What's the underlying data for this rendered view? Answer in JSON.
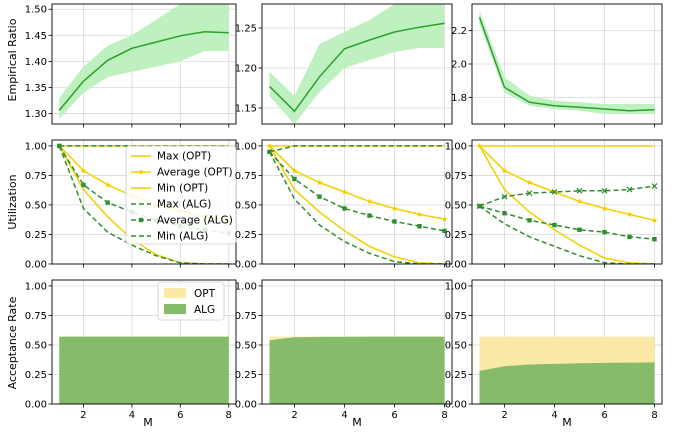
{
  "figure": {
    "xlabel": "M",
    "row_labels": [
      "Empirical Ratio",
      "Utilization",
      "Acceptance Rate"
    ],
    "colors": {
      "ratio_line": "#2ca02c",
      "ratio_band": "#bff0bf",
      "opt": "#f2d000",
      "alg": "#2f8f2f",
      "opt_area": "#fbe9a6",
      "alg_area": "#86bb6a",
      "grid": "#d8d8d8"
    }
  },
  "chart_data": [
    {
      "id": "ratio-1",
      "type": "line",
      "ylabel": "Empirical Ratio",
      "x": [
        1,
        2,
        3,
        4,
        5,
        6,
        7,
        8
      ],
      "series": [
        {
          "values": [
            1.306,
            1.362,
            1.402,
            1.425,
            1.437,
            1.449,
            1.457,
            1.455
          ],
          "lower": [
            1.29,
            1.34,
            1.37,
            1.38,
            1.39,
            1.4,
            1.42,
            1.42
          ],
          "upper": [
            1.33,
            1.39,
            1.43,
            1.45,
            1.48,
            1.51,
            1.51,
            1.51
          ]
        }
      ],
      "xlim": [
        0.7,
        8.3
      ],
      "ylim": [
        1.28,
        1.51
      ],
      "xticks": [
        2,
        4,
        6,
        8
      ],
      "yticks": [
        1.3,
        1.35,
        1.4,
        1.45,
        1.5
      ],
      "yfmt": 2,
      "grid": true
    },
    {
      "id": "ratio-2",
      "type": "line",
      "x": [
        1,
        2,
        3,
        4,
        5,
        6,
        7,
        8
      ],
      "series": [
        {
          "values": [
            1.177,
            1.146,
            1.189,
            1.224,
            1.235,
            1.245,
            1.251,
            1.256
          ],
          "lower": [
            1.165,
            1.13,
            1.17,
            1.2,
            1.21,
            1.22,
            1.225,
            1.225
          ],
          "upper": [
            1.195,
            1.165,
            1.23,
            1.245,
            1.26,
            1.28,
            1.28,
            1.28
          ]
        }
      ],
      "xlim": [
        0.7,
        8.3
      ],
      "ylim": [
        1.13,
        1.28
      ],
      "xticks": [
        2,
        4,
        6,
        8
      ],
      "yticks": [
        1.15,
        1.2,
        1.25
      ],
      "yfmt": 2,
      "grid": true
    },
    {
      "id": "ratio-3",
      "type": "line",
      "x": [
        1,
        2,
        3,
        4,
        5,
        6,
        7,
        8
      ],
      "series": [
        {
          "values": [
            2.28,
            1.86,
            1.77,
            1.75,
            1.74,
            1.73,
            1.72,
            1.725
          ],
          "lower": [
            2.24,
            1.83,
            1.75,
            1.73,
            1.72,
            1.7,
            1.7,
            1.7
          ],
          "upper": [
            2.32,
            1.92,
            1.81,
            1.78,
            1.77,
            1.76,
            1.76,
            1.76
          ]
        }
      ],
      "xlim": [
        0.7,
        8.3
      ],
      "ylim": [
        1.64,
        2.36
      ],
      "xticks": [
        2,
        4,
        6,
        8
      ],
      "yticks": [
        1.8,
        2.0,
        2.2
      ],
      "yfmt": 1,
      "grid": true
    },
    {
      "id": "util-1",
      "type": "line",
      "ylabel": "Utilization",
      "x": [
        1,
        2,
        3,
        4,
        5,
        6,
        7,
        8
      ],
      "series": [
        {
          "name": "Max (OPT)",
          "group": "opt",
          "style": "solid",
          "marker": "none",
          "values": [
            1,
            1,
            1,
            1,
            1,
            1,
            1,
            1
          ]
        },
        {
          "name": "Average (OPT)",
          "group": "opt",
          "style": "solid",
          "marker": "star",
          "values": [
            1,
            0.79,
            0.67,
            0.58,
            0.5,
            0.45,
            0.4,
            0.37
          ]
        },
        {
          "name": "Min (OPT)",
          "group": "opt",
          "style": "solid",
          "marker": "none",
          "values": [
            1,
            0.63,
            0.4,
            0.21,
            0.08,
            0.01,
            0,
            0
          ]
        },
        {
          "name": "Max (ALG)",
          "group": "alg",
          "style": "dashed",
          "marker": "none",
          "values": [
            1,
            1,
            1,
            1,
            1,
            1,
            1,
            1
          ]
        },
        {
          "name": "Average (ALG)",
          "group": "alg",
          "style": "dashed",
          "marker": "square",
          "values": [
            1,
            0.67,
            0.52,
            0.44,
            0.37,
            0.32,
            0.29,
            0.26
          ]
        },
        {
          "name": "Min (ALG)",
          "group": "alg",
          "style": "dashed",
          "marker": "none",
          "values": [
            1,
            0.47,
            0.27,
            0.16,
            0.07,
            0.01,
            0,
            0
          ]
        }
      ],
      "xlim": [
        0.7,
        8.3
      ],
      "ylim": [
        0,
        1.05
      ],
      "xticks": [
        2,
        4,
        6,
        8
      ],
      "yticks": [
        0,
        0.25,
        0.5,
        0.75,
        1.0
      ],
      "yfmt": 2,
      "grid": true,
      "legend": "center"
    },
    {
      "id": "util-2",
      "type": "line",
      "x": [
        1,
        2,
        3,
        4,
        5,
        6,
        7,
        8
      ],
      "series": [
        {
          "name": "Max (OPT)",
          "group": "opt",
          "style": "solid",
          "marker": "none",
          "values": [
            1,
            1,
            1,
            1,
            1,
            1,
            1,
            1
          ]
        },
        {
          "name": "Average (OPT)",
          "group": "opt",
          "style": "solid",
          "marker": "star",
          "values": [
            1,
            0.79,
            0.69,
            0.61,
            0.53,
            0.47,
            0.42,
            0.38
          ]
        },
        {
          "name": "Min (OPT)",
          "group": "opt",
          "style": "solid",
          "marker": "none",
          "values": [
            1,
            0.63,
            0.44,
            0.28,
            0.15,
            0.06,
            0.01,
            0
          ]
        },
        {
          "name": "Max (ALG)",
          "group": "alg",
          "style": "dashed",
          "marker": "none",
          "values": [
            0.95,
            1,
            1,
            1,
            1,
            1,
            1,
            1
          ]
        },
        {
          "name": "Average (ALG)",
          "group": "alg",
          "style": "dashed",
          "marker": "square",
          "values": [
            0.95,
            0.72,
            0.57,
            0.47,
            0.41,
            0.36,
            0.32,
            0.28
          ]
        },
        {
          "name": "Min (ALG)",
          "group": "alg",
          "style": "dashed",
          "marker": "none",
          "values": [
            0.95,
            0.55,
            0.33,
            0.19,
            0.09,
            0.02,
            0,
            0
          ]
        }
      ],
      "xlim": [
        0.7,
        8.3
      ],
      "ylim": [
        0,
        1.05
      ],
      "xticks": [
        2,
        4,
        6,
        8
      ],
      "yticks": [
        0,
        0.25,
        0.5,
        0.75,
        1.0
      ],
      "yfmt": 2,
      "grid": true
    },
    {
      "id": "util-3",
      "type": "line",
      "x": [
        1,
        2,
        3,
        4,
        5,
        6,
        7,
        8
      ],
      "series": [
        {
          "name": "Max (OPT)",
          "group": "opt",
          "style": "solid",
          "marker": "none",
          "values": [
            1,
            1,
            1,
            1,
            1,
            1,
            1,
            1
          ]
        },
        {
          "name": "Average (OPT)",
          "group": "opt",
          "style": "solid",
          "marker": "star",
          "values": [
            1,
            0.79,
            0.69,
            0.61,
            0.53,
            0.47,
            0.42,
            0.37
          ]
        },
        {
          "name": "Min (OPT)",
          "group": "opt",
          "style": "solid",
          "marker": "none",
          "values": [
            1,
            0.63,
            0.44,
            0.29,
            0.16,
            0.05,
            0.01,
            0
          ]
        },
        {
          "name": "Max (ALG)",
          "group": "alg",
          "style": "dashed",
          "marker": "x",
          "values": [
            0.49,
            0.57,
            0.6,
            0.61,
            0.62,
            0.62,
            0.63,
            0.66
          ]
        },
        {
          "name": "Average (ALG)",
          "group": "alg",
          "style": "dashed",
          "marker": "square",
          "values": [
            0.49,
            0.43,
            0.37,
            0.33,
            0.29,
            0.27,
            0.23,
            0.21
          ]
        },
        {
          "name": "Min (ALG)",
          "group": "alg",
          "style": "dashed",
          "marker": "none",
          "values": [
            0.49,
            0.34,
            0.23,
            0.15,
            0.07,
            0.01,
            0,
            0
          ]
        }
      ],
      "xlim": [
        0.7,
        8.3
      ],
      "ylim": [
        0,
        1.05
      ],
      "xticks": [
        2,
        4,
        6,
        8
      ],
      "yticks": [
        0,
        0.25,
        0.5,
        0.75,
        1.0
      ],
      "yfmt": 2,
      "grid": true
    },
    {
      "id": "accept-1",
      "type": "area",
      "ylabel": "Acceptance Rate",
      "xlabel": "M",
      "x": [
        1,
        2,
        3,
        4,
        5,
        6,
        7,
        8
      ],
      "series": [
        {
          "name": "OPT",
          "group": "opt",
          "values": [
            0.57,
            0.57,
            0.57,
            0.57,
            0.57,
            0.57,
            0.57,
            0.57
          ]
        },
        {
          "name": "ALG",
          "group": "alg",
          "values": [
            0.57,
            0.57,
            0.57,
            0.57,
            0.57,
            0.57,
            0.57,
            0.57
          ]
        }
      ],
      "xlim": [
        0.7,
        8.3
      ],
      "ylim": [
        0,
        1.05
      ],
      "xticks": [
        2,
        4,
        6,
        8
      ],
      "yticks": [
        0,
        0.25,
        0.5,
        0.75,
        1.0
      ],
      "yfmt": 2,
      "grid": true,
      "legend": "top-right"
    },
    {
      "id": "accept-2",
      "type": "area",
      "xlabel": "M",
      "x": [
        1,
        2,
        3,
        4,
        5,
        6,
        7,
        8
      ],
      "series": [
        {
          "name": "OPT",
          "group": "opt",
          "values": [
            0.57,
            0.57,
            0.57,
            0.57,
            0.57,
            0.57,
            0.57,
            0.57
          ]
        },
        {
          "name": "ALG",
          "group": "alg",
          "values": [
            0.54,
            0.565,
            0.568,
            0.569,
            0.57,
            0.57,
            0.57,
            0.57
          ]
        }
      ],
      "xlim": [
        0.7,
        8.3
      ],
      "ylim": [
        0,
        1.05
      ],
      "xticks": [
        2,
        4,
        6,
        8
      ],
      "yticks": [
        0,
        0.25,
        0.5,
        0.75,
        1.0
      ],
      "yfmt": 2,
      "grid": true
    },
    {
      "id": "accept-3",
      "type": "area",
      "xlabel": "M",
      "x": [
        1,
        2,
        3,
        4,
        5,
        6,
        7,
        8
      ],
      "series": [
        {
          "name": "OPT",
          "group": "opt",
          "values": [
            0.57,
            0.57,
            0.57,
            0.57,
            0.57,
            0.57,
            0.57,
            0.57
          ]
        },
        {
          "name": "ALG",
          "group": "alg",
          "values": [
            0.28,
            0.32,
            0.335,
            0.34,
            0.345,
            0.348,
            0.35,
            0.352
          ]
        }
      ],
      "xlim": [
        0.7,
        8.3
      ],
      "ylim": [
        0,
        1.05
      ],
      "xticks": [
        2,
        4,
        6,
        8
      ],
      "yticks": [
        0,
        0.25,
        0.5,
        0.75,
        1.0
      ],
      "yfmt": 2,
      "grid": true
    }
  ]
}
